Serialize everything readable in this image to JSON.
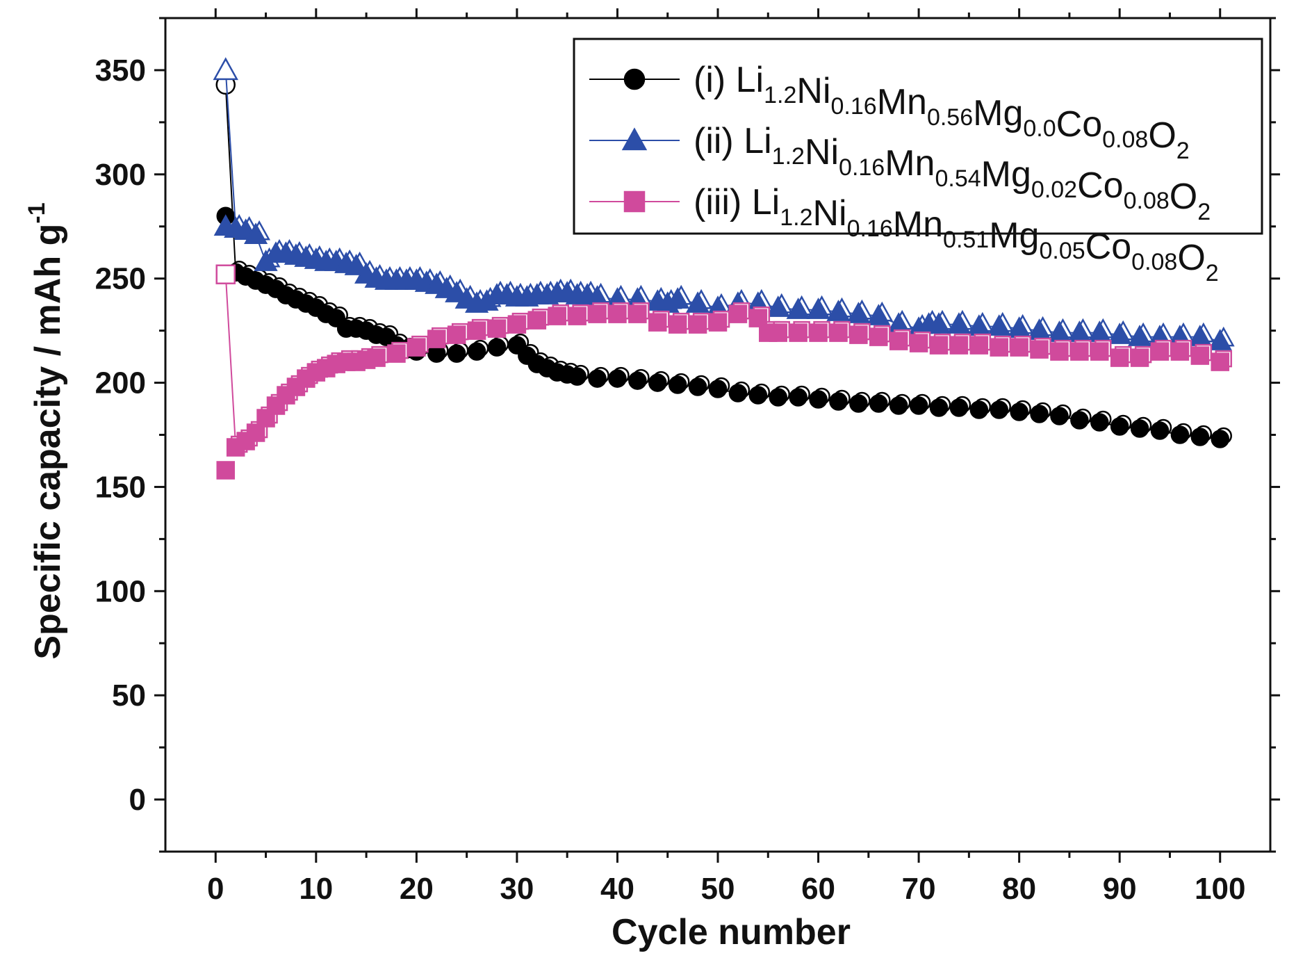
{
  "chart_data": {
    "type": "scatter",
    "title": "",
    "xlabel": "Cycle number",
    "ylabel": "Specific capacity / mAh g-1",
    "xlim": [
      -5,
      105
    ],
    "ylim": [
      -25,
      375
    ],
    "x_ticks": [
      0,
      10,
      20,
      30,
      40,
      50,
      60,
      70,
      80,
      90,
      100
    ],
    "y_ticks": [
      0,
      50,
      100,
      150,
      200,
      250,
      300,
      350
    ],
    "legend_position": "top-right",
    "series": [
      {
        "name": "(i) Li1.2Ni0.16Mn0.56Mg0.0Co0.08O2",
        "label_prefix": "(i)",
        "formula": [
          [
            "Li",
            "1.2"
          ],
          [
            "Ni",
            "0.16"
          ],
          [
            "Mn",
            "0.56"
          ],
          [
            "Mg",
            "0.0"
          ],
          [
            "Co",
            "0.08"
          ],
          [
            "O",
            "2"
          ]
        ],
        "color": "#000000",
        "marker": "circle",
        "charge_cycle1": 343,
        "points": [
          [
            1,
            280
          ],
          [
            2,
            253
          ],
          [
            3,
            251
          ],
          [
            4,
            249
          ],
          [
            5,
            247
          ],
          [
            6,
            245
          ],
          [
            7,
            242
          ],
          [
            8,
            240
          ],
          [
            9,
            238
          ],
          [
            10,
            236
          ],
          [
            11,
            233
          ],
          [
            12,
            231
          ],
          [
            13,
            226
          ],
          [
            14,
            226
          ],
          [
            15,
            225
          ],
          [
            16,
            223
          ],
          [
            17,
            222
          ],
          [
            18,
            218
          ],
          [
            19,
            216
          ],
          [
            20,
            215
          ],
          [
            22,
            214
          ],
          [
            24,
            214
          ],
          [
            26,
            215
          ],
          [
            28,
            217
          ],
          [
            30,
            218
          ],
          [
            31,
            213
          ],
          [
            32,
            209
          ],
          [
            33,
            207
          ],
          [
            34,
            205
          ],
          [
            35,
            204
          ],
          [
            36,
            203
          ],
          [
            38,
            202
          ],
          [
            40,
            202
          ],
          [
            42,
            201
          ],
          [
            44,
            200
          ],
          [
            46,
            199
          ],
          [
            48,
            198
          ],
          [
            50,
            197
          ],
          [
            52,
            195
          ],
          [
            54,
            194
          ],
          [
            56,
            193
          ],
          [
            58,
            193
          ],
          [
            60,
            192
          ],
          [
            62,
            191
          ],
          [
            64,
            190
          ],
          [
            66,
            190
          ],
          [
            68,
            189
          ],
          [
            70,
            189
          ],
          [
            72,
            188
          ],
          [
            74,
            188
          ],
          [
            76,
            187
          ],
          [
            78,
            187
          ],
          [
            80,
            186
          ],
          [
            82,
            185
          ],
          [
            84,
            184
          ],
          [
            86,
            182
          ],
          [
            88,
            181
          ],
          [
            90,
            179
          ],
          [
            92,
            178
          ],
          [
            94,
            177
          ],
          [
            96,
            175
          ],
          [
            98,
            174
          ],
          [
            100,
            173
          ]
        ]
      },
      {
        "name": "(ii) Li1.2Ni0.16Mn0.54Mg0.02Co0.08O2",
        "label_prefix": "(ii)",
        "formula": [
          [
            "Li",
            "1.2"
          ],
          [
            "Ni",
            "0.16"
          ],
          [
            "Mn",
            "0.54"
          ],
          [
            "Mg",
            "0.02"
          ],
          [
            "Co",
            "0.08"
          ],
          [
            "O",
            "2"
          ]
        ],
        "color": "#2c4ea8",
        "marker": "triangle",
        "charge_cycle1": 350,
        "points": [
          [
            1,
            275
          ],
          [
            2,
            274
          ],
          [
            3,
            273
          ],
          [
            4,
            271
          ],
          [
            5,
            258
          ],
          [
            6,
            262
          ],
          [
            7,
            262
          ],
          [
            8,
            261
          ],
          [
            9,
            260
          ],
          [
            10,
            259
          ],
          [
            11,
            258
          ],
          [
            12,
            258
          ],
          [
            13,
            257
          ],
          [
            14,
            256
          ],
          [
            15,
            252
          ],
          [
            16,
            250
          ],
          [
            17,
            249
          ],
          [
            18,
            249
          ],
          [
            19,
            249
          ],
          [
            20,
            249
          ],
          [
            21,
            248
          ],
          [
            22,
            247
          ],
          [
            23,
            245
          ],
          [
            24,
            243
          ],
          [
            25,
            240
          ],
          [
            26,
            238
          ],
          [
            27,
            239
          ],
          [
            28,
            242
          ],
          [
            29,
            242
          ],
          [
            30,
            241
          ],
          [
            31,
            241
          ],
          [
            32,
            242
          ],
          [
            33,
            242
          ],
          [
            34,
            243
          ],
          [
            35,
            243
          ],
          [
            36,
            242
          ],
          [
            37,
            242
          ],
          [
            38,
            241
          ],
          [
            40,
            240
          ],
          [
            42,
            240
          ],
          [
            44,
            239
          ],
          [
            45,
            238
          ],
          [
            46,
            240
          ],
          [
            48,
            238
          ],
          [
            50,
            236
          ],
          [
            52,
            238
          ],
          [
            54,
            238
          ],
          [
            56,
            236
          ],
          [
            58,
            235
          ],
          [
            60,
            235
          ],
          [
            62,
            234
          ],
          [
            64,
            233
          ],
          [
            66,
            232
          ],
          [
            68,
            228
          ],
          [
            70,
            226
          ],
          [
            71,
            228
          ],
          [
            72,
            228
          ],
          [
            74,
            228
          ],
          [
            76,
            227
          ],
          [
            78,
            227
          ],
          [
            80,
            226
          ],
          [
            82,
            225
          ],
          [
            84,
            224
          ],
          [
            86,
            224
          ],
          [
            88,
            224
          ],
          [
            90,
            223
          ],
          [
            92,
            222
          ],
          [
            94,
            222
          ],
          [
            96,
            222
          ],
          [
            98,
            222
          ],
          [
            100,
            220
          ]
        ]
      },
      {
        "name": "(iii) Li1.2Ni0.16Mn0.51Mg0.05Co0.08O2",
        "label_prefix": "(iii)",
        "formula": [
          [
            "Li",
            "1.2"
          ],
          [
            "Ni",
            "0.16"
          ],
          [
            "Mn",
            "0.51"
          ],
          [
            "Mg",
            "0.05"
          ],
          [
            "Co",
            "0.08"
          ],
          [
            "O",
            "2"
          ]
        ],
        "color": "#d04a9c",
        "marker": "square",
        "charge_cycle1": 252,
        "points": [
          [
            1,
            158
          ],
          [
            2,
            169
          ],
          [
            3,
            172
          ],
          [
            4,
            176
          ],
          [
            5,
            183
          ],
          [
            6,
            189
          ],
          [
            7,
            194
          ],
          [
            8,
            198
          ],
          [
            9,
            202
          ],
          [
            10,
            205
          ],
          [
            11,
            207
          ],
          [
            12,
            209
          ],
          [
            13,
            210
          ],
          [
            14,
            210
          ],
          [
            15,
            211
          ],
          [
            16,
            212
          ],
          [
            18,
            214
          ],
          [
            20,
            217
          ],
          [
            22,
            221
          ],
          [
            24,
            223
          ],
          [
            26,
            225
          ],
          [
            28,
            226
          ],
          [
            30,
            228
          ],
          [
            32,
            230
          ],
          [
            34,
            232
          ],
          [
            36,
            232
          ],
          [
            38,
            233
          ],
          [
            40,
            233
          ],
          [
            42,
            233
          ],
          [
            44,
            229
          ],
          [
            46,
            228
          ],
          [
            48,
            228
          ],
          [
            50,
            229
          ],
          [
            52,
            233
          ],
          [
            54,
            231
          ],
          [
            55,
            224
          ],
          [
            56,
            224
          ],
          [
            58,
            224
          ],
          [
            60,
            224
          ],
          [
            62,
            224
          ],
          [
            64,
            223
          ],
          [
            66,
            222
          ],
          [
            68,
            220
          ],
          [
            70,
            219
          ],
          [
            72,
            218
          ],
          [
            74,
            218
          ],
          [
            76,
            218
          ],
          [
            78,
            217
          ],
          [
            80,
            217
          ],
          [
            82,
            216
          ],
          [
            84,
            215
          ],
          [
            86,
            215
          ],
          [
            88,
            215
          ],
          [
            90,
            212
          ],
          [
            92,
            212
          ],
          [
            94,
            215
          ],
          [
            96,
            215
          ],
          [
            98,
            213
          ],
          [
            100,
            210
          ]
        ]
      }
    ]
  }
}
